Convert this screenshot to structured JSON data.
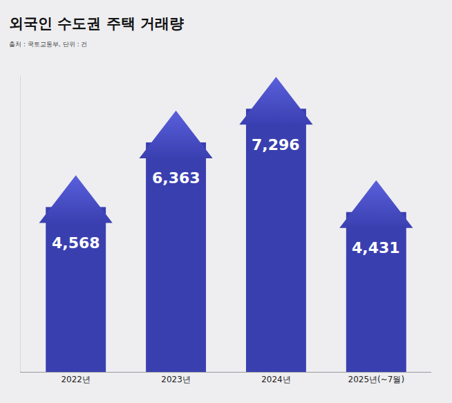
{
  "chart_data": {
    "type": "bar",
    "title": "외국인 수도권 주택 거래량",
    "subtitle": "출처 : 국토교통부, 단위 : 건",
    "categories": [
      "2022년",
      "2023년",
      "2024년",
      "2025년(~7월)"
    ],
    "values": [
      4568,
      6363,
      7296,
      4431
    ],
    "value_labels": [
      "4,568",
      "6,363",
      "7,296",
      "4,431"
    ],
    "color": "#3a3fb0",
    "ylim": [
      0,
      8200
    ],
    "data_labels": true,
    "tick_labels": "x",
    "grid": false
  }
}
